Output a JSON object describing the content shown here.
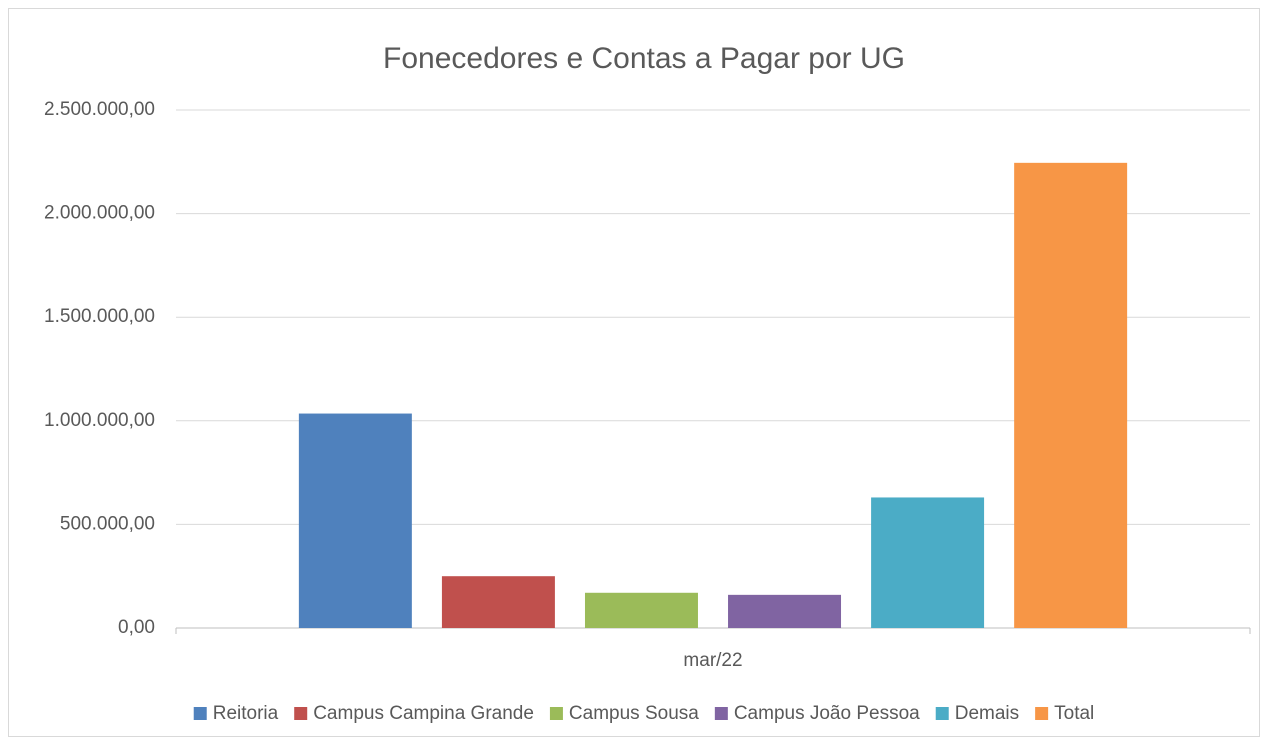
{
  "chart_data": {
    "type": "bar",
    "title": "Fonecedores e Contas a Pagar por UG",
    "categories": [
      "mar/22"
    ],
    "series": [
      {
        "name": "Reitoria",
        "color": "#4f81bd",
        "values": [
          1035000
        ]
      },
      {
        "name": "Campus Campina Grande",
        "color": "#c0504d",
        "values": [
          250000
        ]
      },
      {
        "name": "Campus Sousa",
        "color": "#9bbb59",
        "values": [
          170000
        ]
      },
      {
        "name": "Campus João Pessoa",
        "color": "#8064a2",
        "values": [
          160000
        ]
      },
      {
        "name": "Demais",
        "color": "#4bacc6",
        "values": [
          630000
        ]
      },
      {
        "name": "Total",
        "color": "#f79646",
        "values": [
          2245000
        ]
      }
    ],
    "ylim": [
      0,
      2500000
    ],
    "yticks": [
      {
        "value": 0,
        "label": "0,00"
      },
      {
        "value": 500000,
        "label": "500.000,00"
      },
      {
        "value": 1000000,
        "label": "1.000.000,00"
      },
      {
        "value": 1500000,
        "label": "1.500.000,00"
      },
      {
        "value": 2000000,
        "label": "2.000.000,00"
      },
      {
        "value": 2500000,
        "label": "2.500.000,00"
      }
    ],
    "grid": true,
    "legend": "bottom"
  }
}
